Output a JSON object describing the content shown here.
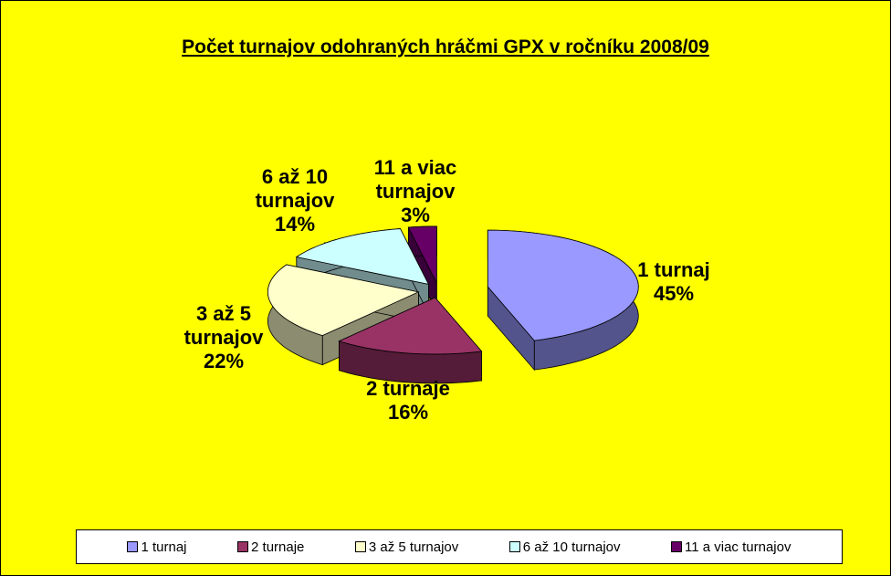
{
  "chart_data": {
    "type": "pie",
    "title": "Počet turnajov odohraných hráčmi GPX v ročníku 2008/09",
    "categories": [
      "1 turnaj",
      "2 turnaje",
      "3 až 5 turnajov",
      "6 až 10 turnajov",
      "11 a viac turnajov"
    ],
    "values": [
      45,
      16,
      22,
      14,
      3
    ],
    "value_labels": [
      "45%",
      "16%",
      "22%",
      "14%",
      "3%"
    ],
    "colors": [
      "#9999ff",
      "#993366",
      "#ffffcc",
      "#ccffff",
      "#660066"
    ],
    "legend": "bottom"
  }
}
